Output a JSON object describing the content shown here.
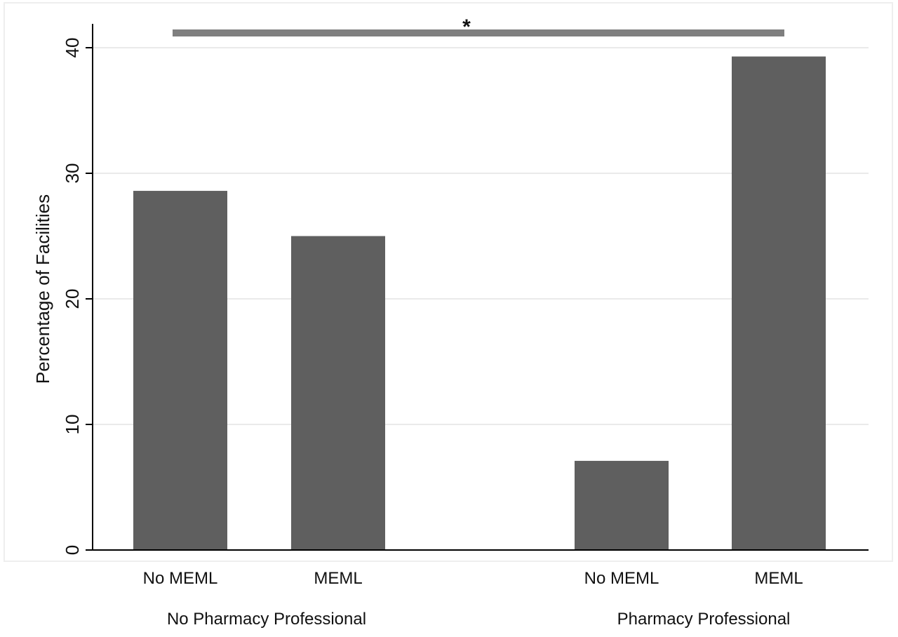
{
  "chart_data": {
    "type": "bar",
    "ylabel": "Percentage of Facilities",
    "ylim": [
      0,
      41
    ],
    "yticks": [
      0,
      10,
      20,
      30,
      40
    ],
    "grid": true,
    "groups": [
      {
        "label": "No Pharmacy Professional",
        "categories": [
          "No MEML",
          "MEML"
        ],
        "values": [
          28.6,
          25.0
        ]
      },
      {
        "label": "Pharmacy Professional",
        "categories": [
          "No MEML",
          "MEML"
        ],
        "values": [
          7.1,
          39.3
        ]
      }
    ],
    "annotation": {
      "text": "*"
    },
    "colors": {
      "bar": "#5f5f5f",
      "sig_bar": "#7f7f7f",
      "grid": "#e4e4e4",
      "axis": "#000000",
      "frame": "#eeeeee"
    }
  }
}
